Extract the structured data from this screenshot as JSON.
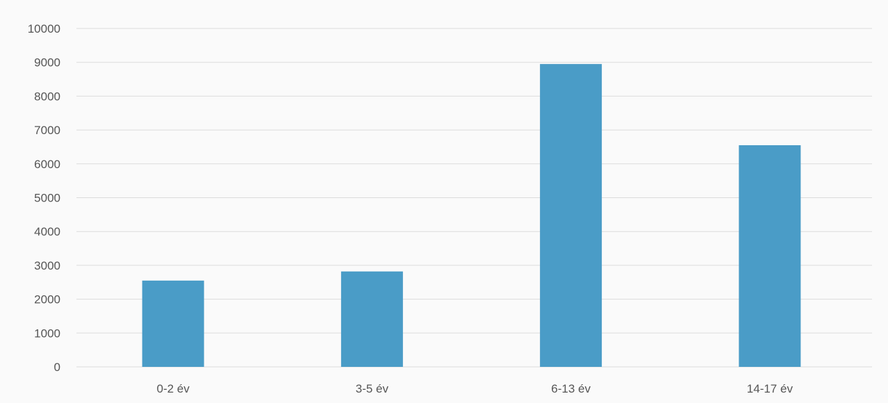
{
  "chart_data": {
    "type": "bar",
    "categories": [
      "0-2 év",
      "3-5 év",
      "6-13 év",
      "14-17 év"
    ],
    "values": [
      2550,
      2820,
      8950,
      6550
    ],
    "title": "",
    "xlabel": "",
    "ylabel": "",
    "ylim": [
      0,
      10000
    ],
    "yticks": [
      0,
      1000,
      2000,
      3000,
      4000,
      5000,
      6000,
      7000,
      8000,
      9000,
      10000
    ],
    "grid": true,
    "legend": "none",
    "bar_color": "#4a9cc7"
  }
}
